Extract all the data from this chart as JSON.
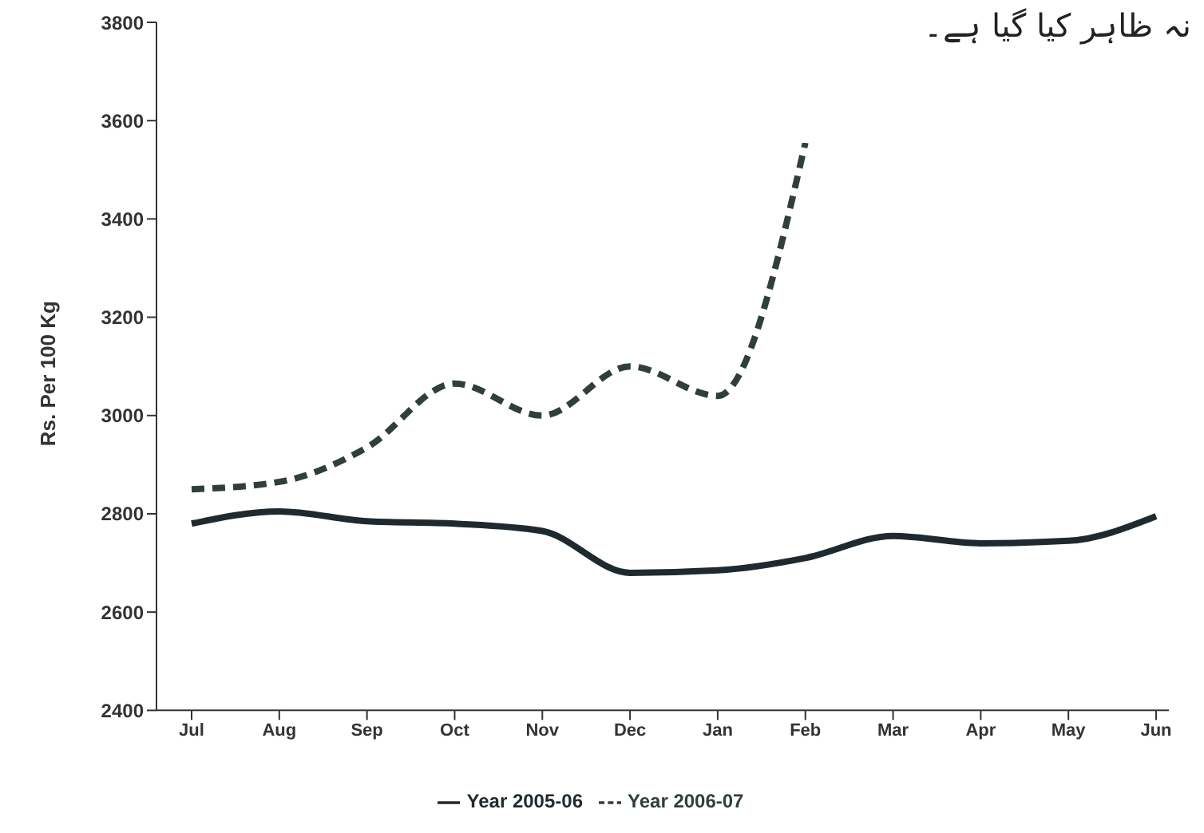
{
  "chart_data": {
    "type": "line",
    "ylabel": "Rs. Per 100 Kg",
    "categories": [
      "Jul",
      "Aug",
      "Sep",
      "Oct",
      "Nov",
      "Dec",
      "Jan",
      "Feb",
      "Mar",
      "Apr",
      "May",
      "Jun"
    ],
    "series": [
      {
        "name": "Year 2005-06",
        "color": "#1f2a30",
        "line_style": "solid",
        "values": [
          2780,
          2805,
          2785,
          2780,
          2765,
          2680,
          2685,
          2710,
          2755,
          2740,
          2745,
          2795
        ]
      },
      {
        "name": "Year 2006-07",
        "color": "#2f3f3c",
        "line_style": "dashed",
        "values": [
          2850,
          2865,
          2935,
          3065,
          3000,
          3100,
          3040,
          3555,
          null,
          null,
          null,
          null
        ]
      }
    ],
    "ylim": [
      2400,
      3800
    ],
    "yticks": [
      2400,
      2600,
      2800,
      3000,
      3200,
      3400,
      3600,
      3800
    ],
    "grid": false,
    "legend": "bottom",
    "marker": "none",
    "annotations": [
      "نہ ظاہر کیا گیا ہے۔"
    ]
  }
}
